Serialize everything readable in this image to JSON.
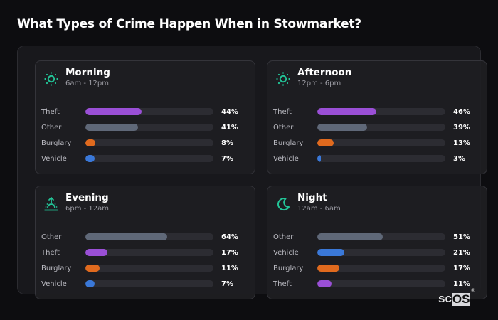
{
  "title": "What Types of Crime Happen When in Stowmarket?",
  "colors": {
    "accent_icon": "#22c497",
    "theft": "#9a4fd6",
    "other": "#5f6878",
    "burglary": "#e06a1e",
    "vehicle": "#3a78d8"
  },
  "cards": [
    {
      "name": "Morning",
      "time": "6am - 12pm",
      "icon": "sun-icon",
      "rows": [
        {
          "label": "Theft",
          "value": 44,
          "pct": "44%",
          "color": "#9a4fd6"
        },
        {
          "label": "Other",
          "value": 41,
          "pct": "41%",
          "color": "#5f6878"
        },
        {
          "label": "Burglary",
          "value": 8,
          "pct": "8%",
          "color": "#e06a1e"
        },
        {
          "label": "Vehicle",
          "value": 7,
          "pct": "7%",
          "color": "#3a78d8"
        }
      ]
    },
    {
      "name": "Afternoon",
      "time": "12pm - 6pm",
      "icon": "sun-icon",
      "rows": [
        {
          "label": "Theft",
          "value": 46,
          "pct": "46%",
          "color": "#9a4fd6"
        },
        {
          "label": "Other",
          "value": 39,
          "pct": "39%",
          "color": "#5f6878"
        },
        {
          "label": "Burglary",
          "value": 13,
          "pct": "13%",
          "color": "#e06a1e"
        },
        {
          "label": "Vehicle",
          "value": 3,
          "pct": "3%",
          "color": "#3a78d8"
        }
      ]
    },
    {
      "name": "Evening",
      "time": "6pm - 12am",
      "icon": "sunset-icon",
      "rows": [
        {
          "label": "Other",
          "value": 64,
          "pct": "64%",
          "color": "#5f6878"
        },
        {
          "label": "Theft",
          "value": 17,
          "pct": "17%",
          "color": "#9a4fd6"
        },
        {
          "label": "Burglary",
          "value": 11,
          "pct": "11%",
          "color": "#e06a1e"
        },
        {
          "label": "Vehicle",
          "value": 7,
          "pct": "7%",
          "color": "#3a78d8"
        }
      ]
    },
    {
      "name": "Night",
      "time": "12am - 6am",
      "icon": "moon-icon",
      "rows": [
        {
          "label": "Other",
          "value": 51,
          "pct": "51%",
          "color": "#5f6878"
        },
        {
          "label": "Vehicle",
          "value": 21,
          "pct": "21%",
          "color": "#3a78d8"
        },
        {
          "label": "Burglary",
          "value": 17,
          "pct": "17%",
          "color": "#e06a1e"
        },
        {
          "label": "Theft",
          "value": 11,
          "pct": "11%",
          "color": "#9a4fd6"
        }
      ]
    }
  ],
  "brand": {
    "sc": "sc",
    "os": "OS",
    "mark": "®"
  },
  "chart_data": [
    {
      "type": "bar",
      "title": "Morning (6am - 12pm)",
      "categories": [
        "Theft",
        "Other",
        "Burglary",
        "Vehicle"
      ],
      "values": [
        44,
        41,
        8,
        7
      ],
      "xlim": [
        0,
        100
      ],
      "unit": "%"
    },
    {
      "type": "bar",
      "title": "Afternoon (12pm - 6pm)",
      "categories": [
        "Theft",
        "Other",
        "Burglary",
        "Vehicle"
      ],
      "values": [
        46,
        39,
        13,
        3
      ],
      "xlim": [
        0,
        100
      ],
      "unit": "%"
    },
    {
      "type": "bar",
      "title": "Evening (6pm - 12am)",
      "categories": [
        "Other",
        "Theft",
        "Burglary",
        "Vehicle"
      ],
      "values": [
        64,
        17,
        11,
        7
      ],
      "xlim": [
        0,
        100
      ],
      "unit": "%"
    },
    {
      "type": "bar",
      "title": "Night (12am - 6am)",
      "categories": [
        "Other",
        "Vehicle",
        "Burglary",
        "Theft"
      ],
      "values": [
        51,
        21,
        17,
        11
      ],
      "xlim": [
        0,
        100
      ],
      "unit": "%"
    }
  ]
}
